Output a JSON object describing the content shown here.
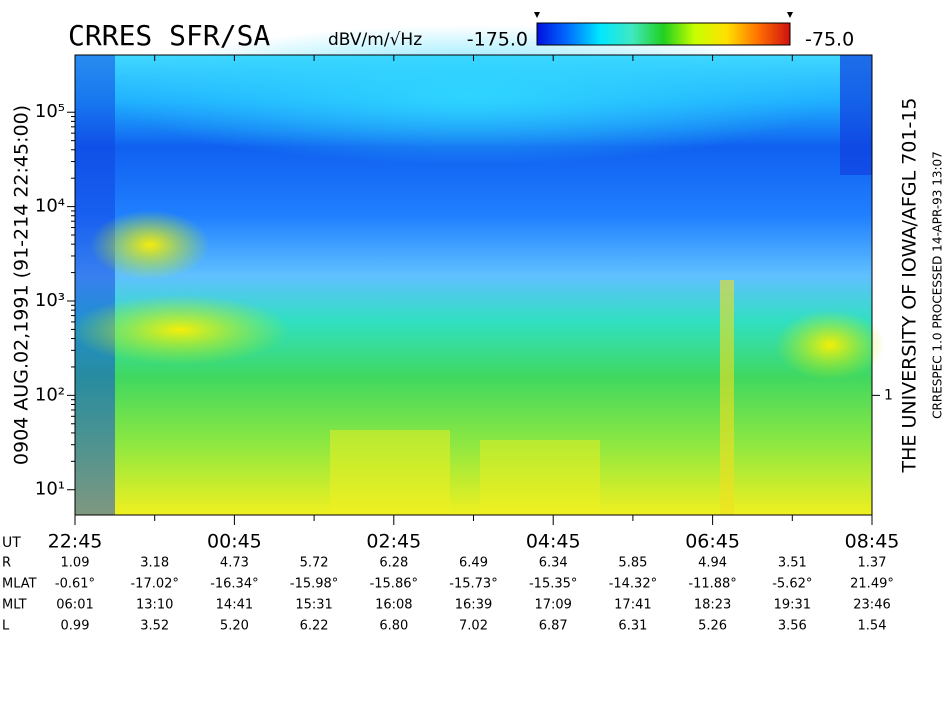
{
  "chart_data": {
    "type": "spectrogram",
    "title": "CRRES SFR/SA",
    "colorbar_label": "dBV/m/√Hz",
    "clim": [
      {
        "value": -175,
        "label": "-175.0"
      },
      {
        "value": -75,
        "label": "-75.0"
      }
    ],
    "colormap": [
      "#0010e0",
      "#0070ff",
      "#00e8ff",
      "#40e8c0",
      "#20d020",
      "#c8ff00",
      "#ffe000",
      "#ff7000",
      "#d01010"
    ],
    "left_caption": "0904    AUG.02,1991    (91-214 22:45:00)",
    "right_caption": "THE UNIVERSITY OF IOWA/AFGL 701-15",
    "right_subcaption": "CRRESPEC 1.0   PROCESSED 14-APR-93   13:07",
    "x_axis_label": "UT",
    "categories": [
      "22:45",
      null,
      "00:45",
      null,
      "02:45",
      null,
      "04:45",
      null,
      "06:45",
      null,
      "08:45"
    ],
    "log_y": true,
    "ylim": [
      5.4,
      404000
    ],
    "yticks": [
      {
        "value": 10,
        "label": "10¹"
      },
      {
        "value": 100,
        "label": "10²"
      },
      {
        "value": 1000,
        "label": "10³"
      },
      {
        "value": 10000,
        "label": "10⁴"
      },
      {
        "value": 100000,
        "label": "10⁵"
      }
    ],
    "y2lim": [
      0.054,
      4040
    ],
    "y2ticks": [
      {
        "value": 1,
        "label": "1"
      }
    ],
    "ephemeris": {
      "labels": [
        "R",
        "MLAT",
        "MLT",
        "L"
      ],
      "rows": [
        [
          "1.09",
          "3.18",
          "4.73",
          "5.72",
          "6.28",
          "6.49",
          "6.34",
          "5.85",
          "4.94",
          "3.51",
          "1.37"
        ],
        [
          "-0.61°",
          "-17.02°",
          "-16.34°",
          "-15.98°",
          "-15.86°",
          "-15.73°",
          "-15.35°",
          "-14.32°",
          "-11.88°",
          "-5.62°",
          "21.49°"
        ],
        [
          "06:01",
          "13:10",
          "14:41",
          "15:31",
          "16:08",
          "16:39",
          "17:09",
          "17:41",
          "18:23",
          "19:31",
          "23:46"
        ],
        [
          "0.99",
          "3.52",
          "5.20",
          "6.22",
          "6.80",
          "7.02",
          "6.87",
          "6.31",
          "5.26",
          "3.56",
          "1.54"
        ]
      ]
    }
  }
}
